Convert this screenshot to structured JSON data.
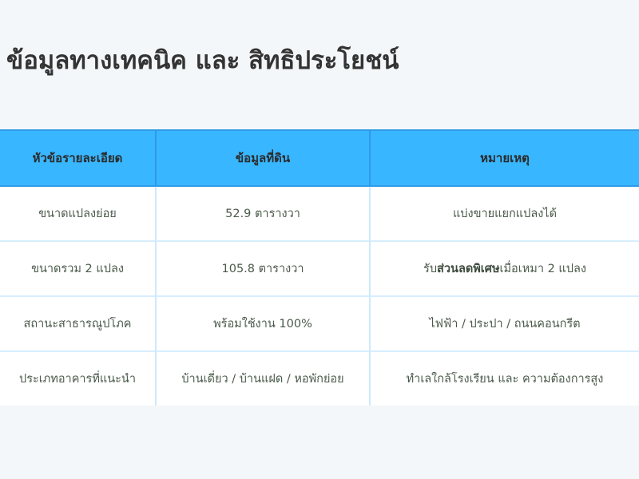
{
  "title": "ข้อมูลทางเทคนิค และ สิทธิประโยชน์",
  "colors": {
    "header_bg": "#38b6ff",
    "page_bg": "#f4f7f9",
    "text": "#4a5a4a"
  },
  "table": {
    "headers": [
      "หัวข้อรายละเอียด",
      "ข้อมูลที่ดิน",
      "หมายเหตุ"
    ],
    "rows": [
      {
        "topic": "ขนาดแปลงย่อย",
        "info": "52.9 ตารางวา",
        "note": "แบ่งขายแยกแปลงได้"
      },
      {
        "topic": "ขนาดรวม 2 แปลง",
        "info": "105.8 ตารางวา",
        "note_prefix": "รับ",
        "note_bold": "ส่วนลดพิเศษ",
        "note_suffix": "เมื่อเหมา 2 แปลง"
      },
      {
        "topic": "สถานะสาธารณูปโภค",
        "info": "พร้อมใช้งาน 100%",
        "note": "ไฟฟ้า / ประปา / ถนนคอนกรีต"
      },
      {
        "topic": "ประเภทอาคารที่แนะนำ",
        "info": "บ้านเดี่ยว / บ้านแฝด / หอพักย่อย",
        "note": "ทำเลใกล้โรงเรียน และ ความต้องการสูง"
      }
    ]
  }
}
